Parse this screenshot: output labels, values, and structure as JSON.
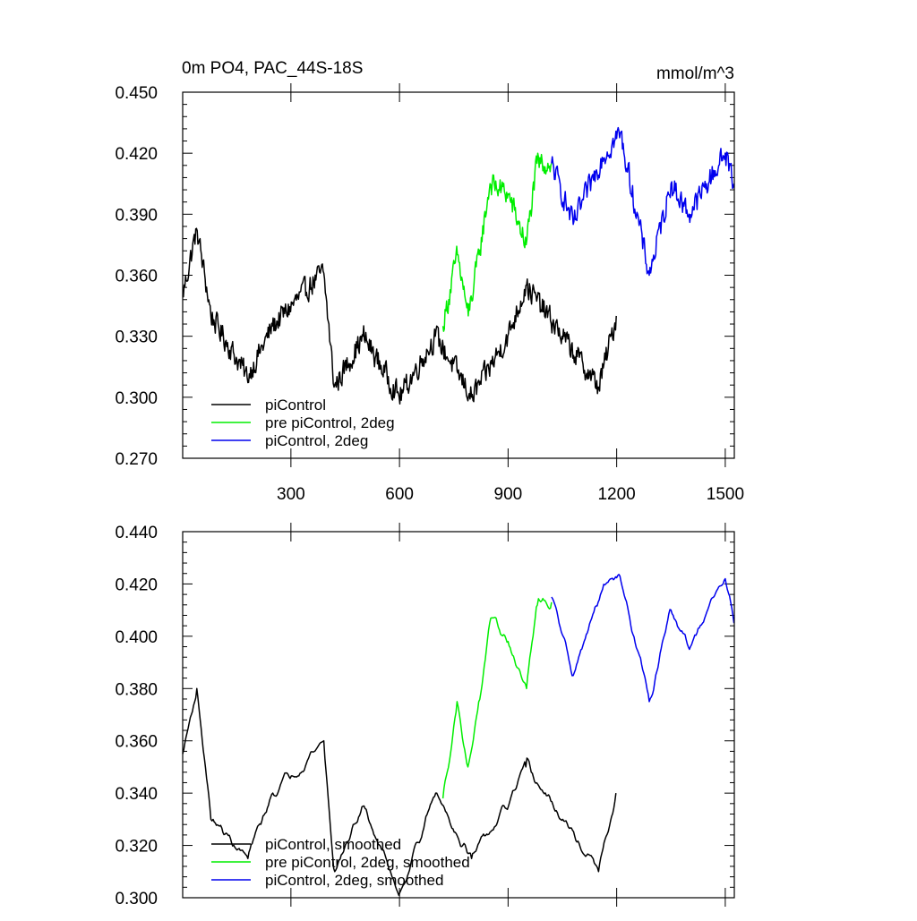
{
  "chart_data": [
    {
      "type": "line",
      "title": "0m PO4, PAC_44S-18S",
      "units": "mmol/m^3",
      "xlim": [
        1,
        1525
      ],
      "ylim": [
        0.27,
        0.45
      ],
      "xticks": [
        300,
        600,
        900,
        1200,
        1500
      ],
      "xtick_labels": [
        "300",
        "600",
        "900",
        "1200",
        "1500"
      ],
      "yticks": [
        0.27,
        0.3,
        0.33,
        0.36,
        0.39,
        0.42,
        0.45
      ],
      "ytick_labels": [
        "0.270",
        "0.300",
        "0.330",
        "0.360",
        "0.390",
        "0.420",
        "0.450"
      ],
      "legend_position": "bottom-left",
      "series": [
        {
          "name": "piControl",
          "color": "#000000",
          "x_range": [
            1,
            1200
          ],
          "key_points": [
            [
              1,
              0.35
            ],
            [
              40,
              0.383
            ],
            [
              80,
              0.34
            ],
            [
              180,
              0.31
            ],
            [
              250,
              0.335
            ],
            [
              390,
              0.362
            ],
            [
              420,
              0.305
            ],
            [
              500,
              0.33
            ],
            [
              600,
              0.3
            ],
            [
              700,
              0.33
            ],
            [
              800,
              0.3
            ],
            [
              900,
              0.33
            ],
            [
              950,
              0.355
            ],
            [
              1050,
              0.33
            ],
            [
              1150,
              0.305
            ],
            [
              1200,
              0.34
            ]
          ]
        },
        {
          "name": "pre piControl, 2deg",
          "color": "#00ee00",
          "x_range": [
            720,
            1020
          ],
          "key_points": [
            [
              720,
              0.335
            ],
            [
              760,
              0.37
            ],
            [
              790,
              0.34
            ],
            [
              820,
              0.37
            ],
            [
              850,
              0.405
            ],
            [
              900,
              0.4
            ],
            [
              950,
              0.375
            ],
            [
              980,
              0.415
            ],
            [
              1020,
              0.415
            ]
          ]
        },
        {
          "name": "piControl, 2deg",
          "color": "#0000ee",
          "x_range": [
            1020,
            1525
          ],
          "key_points": [
            [
              1020,
              0.415
            ],
            [
              1080,
              0.385
            ],
            [
              1160,
              0.418
            ],
            [
              1210,
              0.43
            ],
            [
              1290,
              0.36
            ],
            [
              1350,
              0.405
            ],
            [
              1400,
              0.39
            ],
            [
              1500,
              0.42
            ],
            [
              1525,
              0.405
            ]
          ]
        }
      ]
    },
    {
      "type": "line",
      "title": "",
      "xlim": [
        1,
        1525
      ],
      "ylim": [
        0.3,
        0.44
      ],
      "xticks": [
        300,
        600,
        900,
        1200,
        1500
      ],
      "xtick_labels": [],
      "yticks": [
        0.3,
        0.32,
        0.34,
        0.36,
        0.38,
        0.4,
        0.42,
        0.44
      ],
      "ytick_labels": [
        "0.300",
        "0.320",
        "0.340",
        "0.360",
        "0.380",
        "0.400",
        "0.420",
        "0.440"
      ],
      "legend_position": "bottom-left",
      "series": [
        {
          "name": "piControl, smoothed",
          "color": "#000000",
          "x_range": [
            1,
            1200
          ],
          "key_points": [
            [
              1,
              0.355
            ],
            [
              40,
              0.38
            ],
            [
              80,
              0.33
            ],
            [
              180,
              0.315
            ],
            [
              250,
              0.34
            ],
            [
              390,
              0.36
            ],
            [
              420,
              0.31
            ],
            [
              500,
              0.335
            ],
            [
              600,
              0.302
            ],
            [
              700,
              0.34
            ],
            [
              800,
              0.315
            ],
            [
              900,
              0.335
            ],
            [
              950,
              0.35
            ],
            [
              1050,
              0.33
            ],
            [
              1150,
              0.31
            ],
            [
              1200,
              0.34
            ]
          ]
        },
        {
          "name": "pre piControl, 2deg, smoothed",
          "color": "#00ee00",
          "x_range": [
            720,
            1020
          ],
          "key_points": [
            [
              720,
              0.338
            ],
            [
              760,
              0.375
            ],
            [
              790,
              0.35
            ],
            [
              820,
              0.375
            ],
            [
              850,
              0.405
            ],
            [
              900,
              0.398
            ],
            [
              950,
              0.38
            ],
            [
              980,
              0.412
            ],
            [
              1020,
              0.413
            ]
          ]
        },
        {
          "name": "piControl, 2deg, smoothed",
          "color": "#0000ee",
          "x_range": [
            1020,
            1525
          ],
          "key_points": [
            [
              1020,
              0.415
            ],
            [
              1080,
              0.385
            ],
            [
              1160,
              0.418
            ],
            [
              1210,
              0.423
            ],
            [
              1290,
              0.375
            ],
            [
              1350,
              0.41
            ],
            [
              1400,
              0.395
            ],
            [
              1500,
              0.422
            ],
            [
              1525,
              0.405
            ]
          ]
        }
      ]
    }
  ]
}
